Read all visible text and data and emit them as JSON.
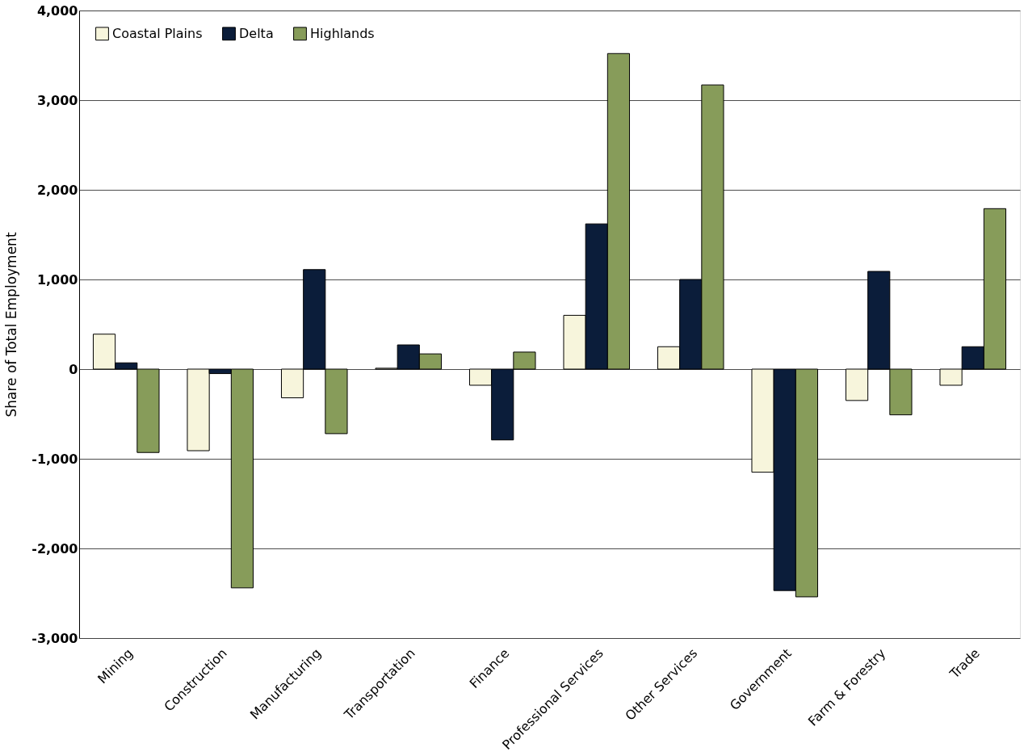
{
  "chart_data": {
    "type": "bar",
    "ylabel": "Share of Total Employment",
    "categories": [
      "Mining",
      "Construction",
      "Manufacturing",
      "Transportation",
      "Finance",
      "Professional Services",
      "Other Services",
      "Government",
      "Farm & Forestry",
      "Trade"
    ],
    "series": [
      {
        "name": "Coastal Plains",
        "color": "#f7f5dc",
        "values": [
          390,
          -910,
          -320,
          10,
          -180,
          600,
          250,
          -1150,
          -350,
          -180
        ]
      },
      {
        "name": "Delta",
        "color": "#0b1d3a",
        "values": [
          70,
          -50,
          1110,
          270,
          -790,
          1620,
          1000,
          -2470,
          1090,
          250
        ]
      },
      {
        "name": "Highlands",
        "color": "#879c5a",
        "values": [
          -930,
          -2440,
          -720,
          170,
          190,
          3520,
          3170,
          -2540,
          -510,
          1790
        ]
      }
    ],
    "ylim": [
      -3000,
      4000
    ],
    "yticks": [
      {
        "value": -3000,
        "label": "-3,000"
      },
      {
        "value": -2000,
        "label": "-2,000"
      },
      {
        "value": -1000,
        "label": "-1,000"
      },
      0,
      {
        "value": 1000,
        "label": "1,000"
      },
      {
        "value": 2000,
        "label": "2,000"
      },
      {
        "value": 3000,
        "label": "3,000"
      },
      {
        "value": 4000,
        "label": "4,000"
      }
    ],
    "grid": "y",
    "legend": "top left"
  }
}
